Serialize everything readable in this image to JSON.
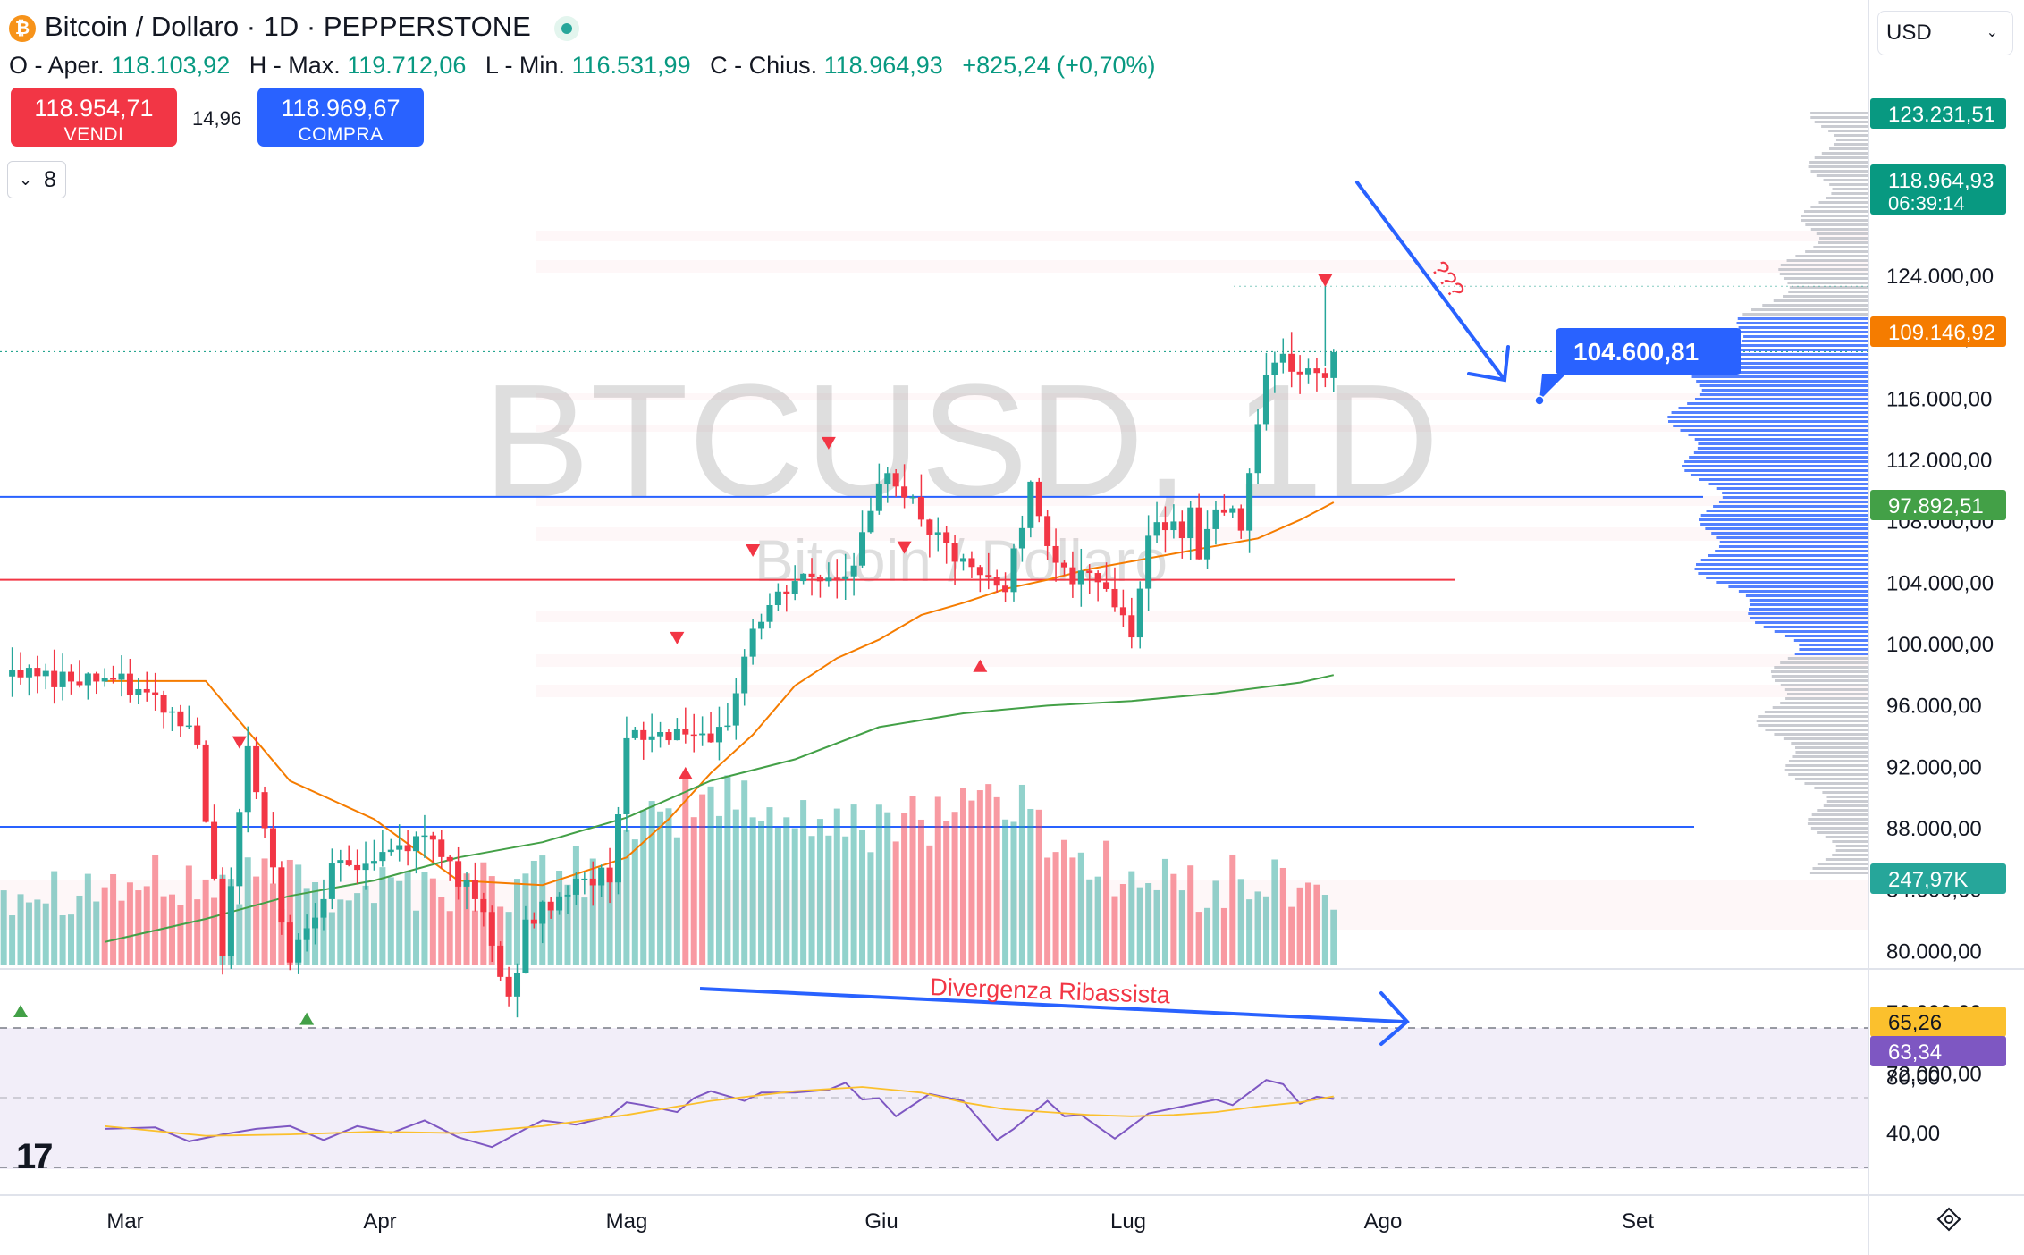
{
  "header": {
    "title": "Bitcoin / Dollaro · 1D · PEPPERSTONE",
    "symbol_icon": "bitcoin-icon",
    "ohlc": [
      {
        "label": "O - Aper.",
        "value": "118.103,92"
      },
      {
        "label": "H - Max.",
        "value": "119.712,06"
      },
      {
        "label": "L - Min.",
        "value": "116.531,99"
      },
      {
        "label": "C - Chius.",
        "value": "118.964,93"
      }
    ],
    "change": "+825,24 (+0,70%)"
  },
  "trade": {
    "sell_price": "118.954,71",
    "sell_label": "VENDI",
    "spread": "14,96",
    "buy_price": "118.969,67",
    "buy_label": "COMPRA"
  },
  "indicators_count": "8",
  "currency": "USD",
  "watermark": {
    "symbol": "BTCUSD, 1D",
    "name": "Bitcoin / Dollaro"
  },
  "colors": {
    "up": "#26a69a",
    "down": "#f23645",
    "ema_short": "#f57c00",
    "ema_long": "#43a047",
    "rsi": "#7e57c2",
    "rsi_ma": "#fbc02d",
    "drawing": "#2962ff"
  },
  "chart_data": [
    {
      "type": "candlestick",
      "title": "Bitcoin / Dollaro · 1D · PEPPERSTONE",
      "ylim": [
        69500,
        125000
      ],
      "y_ticks": [
        "72.000,00",
        "76.000,00",
        "80.000,00",
        "84.000,00",
        "88.000,00",
        "92.000,00",
        "96.000,00",
        "100.000,00",
        "104.000,00",
        "108.000,00",
        "112.000,00",
        "116.000,00",
        "120.000,00",
        "124.000,00"
      ],
      "x_ticks": [
        "Mar",
        "Apr",
        "Mag",
        "Giu",
        "Lug",
        "Ago",
        "Set"
      ],
      "price_path": [
        [
          -2,
          97800
        ],
        [
          4,
          96200
        ],
        [
          9,
          94000
        ],
        [
          11,
          84000
        ],
        [
          12,
          80000
        ],
        [
          15,
          93500
        ],
        [
          20,
          79500
        ],
        [
          25,
          85000
        ],
        [
          28,
          85500
        ],
        [
          37,
          87500
        ],
        [
          43,
          82000
        ],
        [
          46,
          76500
        ],
        [
          48,
          81500
        ],
        [
          53,
          84000
        ],
        [
          58,
          85000
        ],
        [
          60,
          93500
        ],
        [
          67,
          94500
        ],
        [
          70,
          92800
        ],
        [
          72,
          95000
        ],
        [
          75,
          101000
        ],
        [
          80,
          104000
        ],
        [
          86,
          104500
        ],
        [
          89,
          108000
        ],
        [
          91,
          111500
        ],
        [
          97,
          106500
        ],
        [
          101,
          104500
        ],
        [
          105,
          103500
        ],
        [
          107,
          108000
        ],
        [
          108,
          110000
        ],
        [
          111,
          105500
        ],
        [
          113,
          104000
        ],
        [
          117,
          104000
        ],
        [
          118,
          102500
        ],
        [
          120,
          101000
        ],
        [
          122,
          106500
        ],
        [
          124,
          108000
        ],
        [
          126,
          107500
        ],
        [
          127,
          108500
        ],
        [
          128,
          106000
        ],
        [
          130,
          108500
        ],
        [
          133,
          108000
        ],
        [
          136,
          118000
        ],
        [
          138,
          118500
        ],
        [
          140,
          117600
        ],
        [
          142,
          117500
        ],
        [
          143,
          117500
        ],
        [
          144,
          119000
        ]
      ],
      "series": [
        {
          "name": "",
          "type": "line",
          "color": "#f57c00",
          "x": [
            -2,
            10,
            20,
            30,
            40,
            50,
            60,
            65,
            70,
            75,
            80,
            85,
            90,
            95,
            100,
            105,
            110,
            115,
            120,
            125,
            130,
            135,
            140,
            144
          ],
          "values": [
            97500,
            97500,
            91000,
            88500,
            84500,
            84200,
            86000,
            88500,
            91500,
            94000,
            97200,
            99000,
            100200,
            101800,
            102600,
            103500,
            104100,
            104800,
            105300,
            105800,
            106300,
            106800,
            108000,
            109146.92
          ]
        },
        {
          "name": "",
          "type": "line",
          "color": "#43a047",
          "x": [
            -2,
            10,
            20,
            30,
            40,
            50,
            60,
            70,
            80,
            90,
            100,
            110,
            120,
            130,
            140,
            144
          ],
          "values": [
            80500,
            82000,
            83500,
            84500,
            86000,
            87000,
            88600,
            91000,
            92400,
            94500,
            95400,
            95900,
            96200,
            96700,
            97400,
            97892.51
          ]
        },
        {
          "name": "Volume",
          "type": "bar",
          "last_value": "247,97K"
        }
      ],
      "horizontal_lines": [
        {
          "price": 109500,
          "color": "#2962ff"
        },
        {
          "price": 104100,
          "color": "#f23645"
        },
        {
          "price": 88000,
          "color": "#2962ff"
        }
      ],
      "markers": {
        "down": [
          [
            84,
            113000
          ],
          [
            75,
            106000
          ],
          [
            66,
            100300
          ],
          [
            93,
            106200
          ],
          [
            143,
            123600
          ],
          [
            14,
            93500
          ]
        ],
        "up": [
          [
            -12,
            76000
          ],
          [
            22,
            75500
          ],
          [
            67,
            91500
          ],
          [
            102,
            98500
          ]
        ]
      },
      "price_labels": [
        {
          "value": "123.231,51",
          "color": "#089981"
        },
        {
          "value": "118.964,93",
          "sub": "06:39:14",
          "color": "#089981"
        },
        {
          "value": "109.146,92",
          "color": "#f57c00"
        },
        {
          "value": "97.892,51",
          "color": "#43a047"
        },
        {
          "value": "247,97K",
          "color": "#26a69a"
        }
      ],
      "annotation": {
        "question": "???",
        "target_label": "104.600,81"
      }
    },
    {
      "type": "line",
      "ylim": [
        20,
        88
      ],
      "y_ticks": [
        "80,00",
        "40,00"
      ],
      "annotation": "Divergenza Ribassista",
      "series": [
        {
          "name": "",
          "color": "#7e57c2",
          "x": [
            -2,
            4,
            8,
            12,
            16,
            20,
            24,
            28,
            32,
            36,
            40,
            44,
            48,
            50,
            54,
            58,
            60,
            62,
            66,
            68,
            70,
            74,
            76,
            80,
            84,
            86,
            88,
            90,
            92,
            96,
            100,
            104,
            106,
            110,
            112,
            114,
            118,
            122,
            126,
            130,
            132,
            136,
            138,
            140,
            142,
            144
          ],
          "values": [
            42,
            43,
            33,
            38,
            42,
            44,
            34,
            44,
            39,
            48,
            36,
            29,
            42,
            48,
            45,
            51,
            61,
            59,
            54,
            64,
            69,
            62,
            68,
            68,
            70,
            75,
            63,
            64,
            51,
            67,
            62,
            34,
            42,
            62,
            51,
            52,
            35,
            53,
            58,
            63,
            59,
            77,
            74,
            60,
            65,
            63.34
          ]
        },
        {
          "name": "",
          "color": "#fbc02d",
          "x": [
            -2,
            10,
            20,
            30,
            40,
            50,
            60,
            70,
            80,
            88,
            95,
            100,
            105,
            110,
            115,
            120,
            125,
            130,
            135,
            140,
            144
          ],
          "values": [
            44,
            37,
            38,
            40,
            39,
            44,
            52,
            62,
            69,
            72,
            68,
            61,
            56,
            54,
            52,
            51,
            52,
            54,
            58,
            61,
            65.26
          ]
        }
      ],
      "price_labels": [
        {
          "value": "65,26",
          "color": "#fbc02d"
        },
        {
          "value": "63,34",
          "color": "#7e57c2"
        }
      ]
    }
  ]
}
